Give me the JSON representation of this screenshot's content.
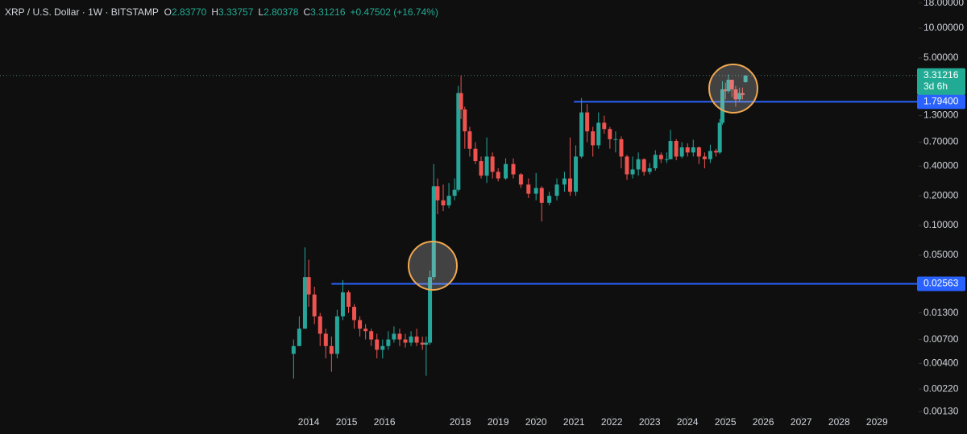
{
  "chart_data": {
    "type": "candlestick",
    "title": "XRP / U.S. Dollar · 1W · BITSTAMP",
    "ohlc_header": [
      {
        "letter": "O",
        "value": "2.83770"
      },
      {
        "letter": "H",
        "value": "3.33757"
      },
      {
        "letter": "L",
        "value": "2.80378"
      },
      {
        "letter": "C",
        "value": "3.31216"
      }
    ],
    "change": "+0.47502 (+16.74%)",
    "log_scale": true,
    "up_color": "#26a69a",
    "down_color": "#ef5350",
    "xlim": [
      2005.85,
      2030.1
    ],
    "xticks": [
      2014,
      2015,
      2016,
      2018,
      2019,
      2020,
      2021,
      2022,
      2023,
      2024,
      2025,
      2026,
      2027,
      2028,
      2029
    ],
    "ylim": [
      0.00121,
      19.3
    ],
    "yticks": [
      {
        "value": 18,
        "label": "18.00000"
      },
      {
        "value": 10,
        "label": "10.00000"
      },
      {
        "value": 5,
        "label": "5.00000"
      },
      {
        "value": 1.3,
        "label": "1.30000"
      },
      {
        "value": 0.7,
        "label": "0.70000"
      },
      {
        "value": 0.4,
        "label": "0.40000"
      },
      {
        "value": 0.2,
        "label": "0.20000"
      },
      {
        "value": 0.1,
        "label": "0.10000"
      },
      {
        "value": 0.05,
        "label": "0.05000"
      },
      {
        "value": 0.013,
        "label": "0.01300"
      },
      {
        "value": 0.007,
        "label": "0.00700"
      },
      {
        "value": 0.004,
        "label": "0.00400"
      },
      {
        "value": 0.0022,
        "label": "0.00220"
      },
      {
        "value": 0.0013,
        "label": "0.00130"
      }
    ],
    "last_price": {
      "value": 3.31216,
      "label": "3.31216",
      "countdown": "3d 6h",
      "color": "#22ab94"
    },
    "levels": [
      {
        "value": 1.794,
        "label": "1.79400",
        "from": 2021.0,
        "color": "#2962ff"
      },
      {
        "value": 0.02563,
        "label": "0.02563",
        "from": 2014.6,
        "color": "#2962ff"
      }
    ],
    "x": [
      2013.6,
      2013.75,
      2013.9,
      2014.0,
      2014.15,
      2014.3,
      2014.45,
      2014.6,
      2014.75,
      2014.9,
      2015.05,
      2015.2,
      2015.35,
      2015.5,
      2015.65,
      2015.8,
      2015.95,
      2016.1,
      2016.25,
      2016.4,
      2016.55,
      2016.7,
      2016.85,
      2017.0,
      2017.1,
      2017.2,
      2017.3,
      2017.4,
      2017.55,
      2017.7,
      2017.85,
      2017.95,
      2018.02,
      2018.12,
      2018.25,
      2018.4,
      2018.55,
      2018.7,
      2018.85,
      2019.0,
      2019.2,
      2019.4,
      2019.6,
      2019.8,
      2020.0,
      2020.15,
      2020.35,
      2020.55,
      2020.75,
      2020.9,
      2021.05,
      2021.2,
      2021.35,
      2021.5,
      2021.65,
      2021.8,
      2021.95,
      2022.1,
      2022.25,
      2022.4,
      2022.55,
      2022.7,
      2022.85,
      2023.0,
      2023.15,
      2023.3,
      2023.45,
      2023.55,
      2023.7,
      2023.85,
      2024.0,
      2024.15,
      2024.3,
      2024.45,
      2024.6,
      2024.75,
      2024.85,
      2024.92,
      2025.0,
      2025.08,
      2025.17,
      2025.27,
      2025.37,
      2025.45,
      2025.53
    ],
    "open": [
      0.005,
      0.006,
      0.009,
      0.03,
      0.02,
      0.012,
      0.008,
      0.006,
      0.005,
      0.012,
      0.021,
      0.015,
      0.011,
      0.009,
      0.0085,
      0.007,
      0.0055,
      0.006,
      0.007,
      0.008,
      0.007,
      0.0065,
      0.0075,
      0.0065,
      0.0062,
      0.0065,
      0.03,
      0.25,
      0.18,
      0.16,
      0.2,
      0.23,
      2.2,
      1.5,
      0.9,
      0.6,
      0.45,
      0.32,
      0.5,
      0.35,
      0.3,
      0.42,
      0.33,
      0.26,
      0.21,
      0.24,
      0.17,
      0.2,
      0.26,
      0.3,
      0.22,
      0.5,
      1.4,
      0.9,
      0.65,
      1.1,
      0.95,
      0.75,
      0.75,
      0.5,
      0.33,
      0.37,
      0.47,
      0.35,
      0.38,
      0.52,
      0.47,
      0.47,
      0.72,
      0.5,
      0.62,
      0.55,
      0.62,
      0.5,
      0.47,
      0.57,
      0.55,
      1.1,
      2.4,
      2.3,
      3.0,
      2.4,
      1.9,
      2.2,
      2.8377
    ],
    "high": [
      0.007,
      0.012,
      0.06,
      0.045,
      0.024,
      0.013,
      0.009,
      0.0075,
      0.014,
      0.028,
      0.022,
      0.016,
      0.012,
      0.01,
      0.009,
      0.008,
      0.007,
      0.0085,
      0.0095,
      0.009,
      0.008,
      0.0085,
      0.009,
      0.0075,
      0.0075,
      0.035,
      0.42,
      0.3,
      0.26,
      0.27,
      0.3,
      2.6,
      3.3,
      1.6,
      1.0,
      0.7,
      0.5,
      0.78,
      0.55,
      0.38,
      0.48,
      0.48,
      0.34,
      0.3,
      0.34,
      0.25,
      0.22,
      0.3,
      0.35,
      0.78,
      0.65,
      1.96,
      1.7,
      1.0,
      1.4,
      1.3,
      1.0,
      0.9,
      0.8,
      0.52,
      0.5,
      0.55,
      0.48,
      0.43,
      0.58,
      0.55,
      0.55,
      0.93,
      0.75,
      0.7,
      0.68,
      0.74,
      0.63,
      0.55,
      0.66,
      0.6,
      1.2,
      2.9,
      2.8,
      3.4,
      3.0,
      2.6,
      2.5,
      2.5,
      3.33757
    ],
    "low": [
      0.0028,
      0.006,
      0.009,
      0.015,
      0.01,
      0.006,
      0.0045,
      0.0033,
      0.0045,
      0.011,
      0.013,
      0.009,
      0.0075,
      0.007,
      0.006,
      0.0045,
      0.0045,
      0.0055,
      0.0065,
      0.006,
      0.0058,
      0.006,
      0.006,
      0.0055,
      0.003,
      0.0062,
      0.028,
      0.13,
      0.14,
      0.15,
      0.18,
      0.22,
      1.2,
      0.6,
      0.5,
      0.42,
      0.3,
      0.27,
      0.3,
      0.28,
      0.29,
      0.3,
      0.24,
      0.19,
      0.18,
      0.11,
      0.16,
      0.18,
      0.22,
      0.2,
      0.2,
      0.48,
      0.7,
      0.5,
      0.6,
      0.85,
      0.6,
      0.55,
      0.38,
      0.29,
      0.3,
      0.32,
      0.32,
      0.33,
      0.36,
      0.43,
      0.43,
      0.47,
      0.46,
      0.48,
      0.5,
      0.5,
      0.42,
      0.38,
      0.43,
      0.5,
      0.53,
      1.05,
      1.9,
      2.2,
      2.0,
      1.6,
      1.8,
      1.9,
      2.80378
    ],
    "close": [
      0.006,
      0.009,
      0.03,
      0.02,
      0.012,
      0.008,
      0.006,
      0.005,
      0.012,
      0.021,
      0.015,
      0.011,
      0.009,
      0.0085,
      0.007,
      0.0055,
      0.006,
      0.007,
      0.008,
      0.007,
      0.0065,
      0.0075,
      0.0065,
      0.0062,
      0.0065,
      0.03,
      0.25,
      0.18,
      0.16,
      0.2,
      0.23,
      2.2,
      1.5,
      0.9,
      0.6,
      0.45,
      0.32,
      0.5,
      0.35,
      0.3,
      0.42,
      0.33,
      0.26,
      0.21,
      0.24,
      0.17,
      0.2,
      0.26,
      0.3,
      0.22,
      0.5,
      1.4,
      0.9,
      0.65,
      1.1,
      0.95,
      0.75,
      0.75,
      0.5,
      0.33,
      0.37,
      0.47,
      0.35,
      0.38,
      0.52,
      0.47,
      0.47,
      0.72,
      0.5,
      0.62,
      0.55,
      0.62,
      0.5,
      0.47,
      0.57,
      0.55,
      1.1,
      2.4,
      2.3,
      3.0,
      2.4,
      1.9,
      2.2,
      2.1,
      3.31216
    ]
  }
}
